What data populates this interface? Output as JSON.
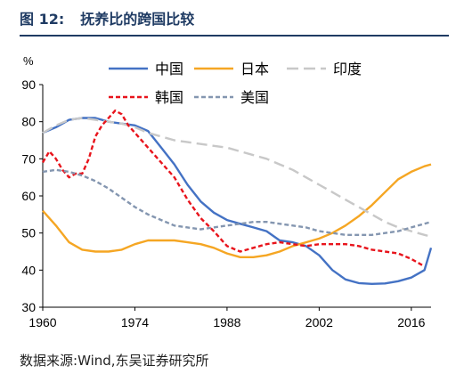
{
  "figure": {
    "label": "图 12:",
    "title": "抚养比的跨国比较",
    "source_label": "数据来源:",
    "source_text": "Wind,东吴证券研究所"
  },
  "chart_data": {
    "type": "line",
    "ylabel": "%",
    "ylim": [
      30,
      90
    ],
    "xlim": [
      1960,
      2019
    ],
    "yticks": [
      30,
      40,
      50,
      60,
      70,
      80,
      90
    ],
    "xticks": [
      1960,
      1974,
      1988,
      2002,
      2016
    ],
    "grid": false,
    "legend_position": "top",
    "series": [
      {
        "name": "中国",
        "color": "#4472c4",
        "dash": "solid",
        "x": [
          1960,
          1962,
          1964,
          1966,
          1968,
          1970,
          1972,
          1974,
          1976,
          1978,
          1980,
          1982,
          1984,
          1986,
          1988,
          1990,
          1992,
          1994,
          1996,
          1998,
          2000,
          2002,
          2004,
          2006,
          2008,
          2010,
          2012,
          2014,
          2016,
          2018,
          2019
        ],
        "y": [
          77,
          78.5,
          80.5,
          81,
          81,
          80,
          79.5,
          79,
          77.5,
          73,
          68.5,
          63,
          58.5,
          55.5,
          53.5,
          52.5,
          51.5,
          50.5,
          48,
          47.5,
          46.5,
          44,
          40,
          37.5,
          36.5,
          36.3,
          36.4,
          37,
          38,
          40,
          46
        ]
      },
      {
        "name": "日本",
        "color": "#f5a623",
        "dash": "solid",
        "x": [
          1960,
          1962,
          1964,
          1966,
          1968,
          1970,
          1972,
          1974,
          1976,
          1978,
          1980,
          1982,
          1984,
          1986,
          1988,
          1990,
          1992,
          1994,
          1996,
          1998,
          2000,
          2002,
          2004,
          2006,
          2008,
          2010,
          2012,
          2014,
          2016,
          2018,
          2019
        ],
        "y": [
          56,
          52,
          47.5,
          45.5,
          45,
          45,
          45.5,
          47,
          48,
          48,
          48,
          47.5,
          47,
          46,
          44.5,
          43.5,
          43.5,
          44,
          45,
          46.5,
          47.5,
          48.5,
          50,
          52,
          54.5,
          57.5,
          61,
          64.5,
          66.5,
          68,
          68.5
        ]
      },
      {
        "name": "印度",
        "color": "#c8c8c8",
        "dash": "long",
        "x": [
          1960,
          1962,
          1964,
          1966,
          1968,
          1970,
          1972,
          1974,
          1976,
          1978,
          1980,
          1982,
          1984,
          1986,
          1988,
          1990,
          1992,
          1994,
          1996,
          1998,
          2000,
          2002,
          2004,
          2006,
          2008,
          2010,
          2012,
          2014,
          2016,
          2018,
          2019
        ],
        "y": [
          77,
          79,
          80.5,
          81,
          80.5,
          80,
          79.5,
          78.5,
          77,
          76,
          75,
          74.5,
          74,
          73.5,
          73,
          72,
          71,
          70,
          68.5,
          67,
          65,
          63,
          61,
          59,
          57,
          55,
          53,
          51.5,
          50.5,
          49.5,
          49
        ]
      },
      {
        "name": "韩国",
        "color": "#e8141c",
        "dash": "short",
        "x": [
          1960,
          1961,
          1962,
          1963,
          1964,
          1965,
          1966,
          1967,
          1968,
          1969,
          1970,
          1971,
          1972,
          1973,
          1974,
          1976,
          1978,
          1980,
          1982,
          1984,
          1986,
          1988,
          1990,
          1992,
          1994,
          1996,
          1998,
          2000,
          2002,
          2004,
          2006,
          2008,
          2010,
          2012,
          2014,
          2016,
          2018
        ],
        "y": [
          69,
          72,
          70,
          67,
          65,
          66,
          66,
          70,
          76,
          79,
          81,
          83,
          82,
          79,
          77,
          73,
          69,
          65,
          59,
          54,
          50.5,
          46.5,
          45,
          46,
          47,
          47.5,
          47,
          46.5,
          47,
          47,
          47,
          46.5,
          45.5,
          45,
          44.5,
          43,
          41
        ]
      },
      {
        "name": "美国",
        "color": "#8496b0",
        "dash": "short",
        "x": [
          1960,
          1962,
          1964,
          1966,
          1968,
          1970,
          1972,
          1974,
          1976,
          1978,
          1980,
          1982,
          1984,
          1986,
          1988,
          1990,
          1992,
          1994,
          1996,
          1998,
          2000,
          2002,
          2004,
          2006,
          2008,
          2010,
          2012,
          2014,
          2016,
          2018,
          2019
        ],
        "y": [
          66.5,
          67,
          66.5,
          65.5,
          64,
          62,
          59.5,
          57,
          55,
          53.5,
          52,
          51.5,
          51,
          51.5,
          52,
          52.5,
          53,
          53,
          52.5,
          52,
          51.5,
          50.5,
          50,
          49.5,
          49.5,
          49.5,
          50,
          50.5,
          51.5,
          52.5,
          53
        ]
      }
    ]
  }
}
